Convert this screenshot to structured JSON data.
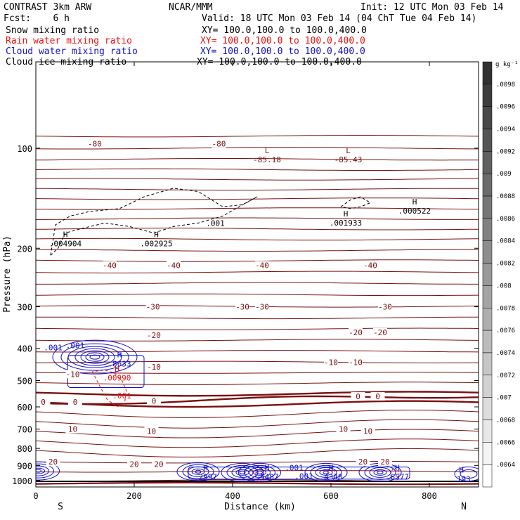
{
  "header": {
    "title": "CONTRAST  3km ARW",
    "center": "NCAR/MMM",
    "init": "Init: 12 UTC Mon 03 Feb 14",
    "fcst": "Fcst:    6 h",
    "valid": "Valid: 18 UTC Mon 03 Feb 14 (04 ChT Tue 04 Feb 14)",
    "fields": [
      {
        "name": "Snow mixing ratio",
        "xy": "XY= 100.0,100.0 to 100.0,400.0",
        "color": "#000000"
      },
      {
        "name": "Rain water mixing ratio",
        "xy": "XY= 100.0,100.0 to 100.0,400.0",
        "color": "#ee1111"
      },
      {
        "name": "Cloud water mixing ratio",
        "xy": "XY= 100.0,100.0 to 100.0,400.0",
        "color": "#1111cc"
      },
      {
        "name": "Cloud ice mixing ratio",
        "xy": "XY= 100.0,100.0 to 100.0,400.0",
        "color": "#000000"
      }
    ]
  },
  "colors": {
    "temperature": "#7a1010",
    "rain": "#ee1111",
    "cloud": "#1111cc",
    "snow": "#000000",
    "zero": "#7a1010"
  },
  "chart_data": {
    "type": "contour",
    "xlabel": "Distance (km)",
    "ylabel": "Pressure (hPa)",
    "xlim": [
      0,
      900
    ],
    "ylim": [
      1045,
      55
    ],
    "yscale": "log",
    "xticks": [
      0,
      200,
      400,
      600,
      800
    ],
    "yticks": [
      100,
      200,
      300,
      400,
      500,
      600,
      700,
      800,
      900,
      1000
    ],
    "end_labels": {
      "left": "S",
      "right": "N"
    },
    "colorbar": {
      "unit": "g kg⁻¹",
      "labels": [
        ".0098",
        ".0096",
        ".0094",
        ".0092",
        ".009",
        ".0088",
        ".0086",
        ".0084",
        ".0082",
        ".008",
        ".0078",
        ".0076",
        ".0074",
        ".0072",
        ".007",
        ".0068",
        ".0066",
        ".0064"
      ]
    },
    "temperature_contour_labels": [
      {
        "text": "-80",
        "x": 120,
        "p": 97
      },
      {
        "text": "-80",
        "x": 372,
        "p": 97
      },
      {
        "text": "-40",
        "x": 150,
        "p": 225
      },
      {
        "text": "-40",
        "x": 280,
        "p": 225
      },
      {
        "text": "-40",
        "x": 460,
        "p": 225
      },
      {
        "text": "-40",
        "x": 680,
        "p": 225
      },
      {
        "text": "-30",
        "x": 238,
        "p": 300
      },
      {
        "text": "-30",
        "x": 420,
        "p": 300
      },
      {
        "text": "-30",
        "x": 460,
        "p": 300
      },
      {
        "text": "-30",
        "x": 710,
        "p": 300
      },
      {
        "text": "-20",
        "x": 240,
        "p": 365
      },
      {
        "text": "-20",
        "x": 650,
        "p": 358
      },
      {
        "text": "-20",
        "x": 700,
        "p": 358
      },
      {
        "text": "-10",
        "x": 240,
        "p": 455
      },
      {
        "text": "-10",
        "x": 600,
        "p": 440
      },
      {
        "text": "-10",
        "x": 650,
        "p": 440
      },
      {
        "text": "-10",
        "x": 75,
        "p": 478
      },
      {
        "text": "0",
        "x": 15,
        "p": 580
      },
      {
        "text": "0",
        "x": 80,
        "p": 580
      },
      {
        "text": "0",
        "x": 240,
        "p": 575
      },
      {
        "text": "0",
        "x": 655,
        "p": 558
      },
      {
        "text": "0",
        "x": 695,
        "p": 558
      },
      {
        "text": "10",
        "x": 75,
        "p": 700
      },
      {
        "text": "10",
        "x": 235,
        "p": 710
      },
      {
        "text": "10",
        "x": 625,
        "p": 700
      },
      {
        "text": "10",
        "x": 675,
        "p": 710
      },
      {
        "text": "20",
        "x": 35,
        "p": 878
      },
      {
        "text": "20",
        "x": 200,
        "p": 893
      },
      {
        "text": "20",
        "x": 250,
        "p": 893
      },
      {
        "text": "20",
        "x": 665,
        "p": 878
      },
      {
        "text": "20",
        "x": 710,
        "p": 878
      }
    ],
    "extrema": [
      {
        "kind": "L",
        "value": "-85.18",
        "x": 470,
        "p": 105,
        "color": "#7a1010"
      },
      {
        "kind": "L",
        "value": "-85.43",
        "x": 635,
        "p": 105,
        "color": "#7a1010"
      },
      {
        "kind": "H",
        "value": ".004904",
        "x": 60,
        "p": 188,
        "color": "#000000"
      },
      {
        "kind": "H",
        "value": ".002925",
        "x": 245,
        "p": 188,
        "color": "#000000"
      },
      {
        "kind": "H",
        "value": ".001933",
        "x": 630,
        "p": 163,
        "color": "#000000"
      },
      {
        "kind": "H",
        "value": ".000522",
        "x": 770,
        "p": 150,
        "color": "#000000"
      },
      {
        "kind": "H",
        "value": ".8633",
        "x": 170,
        "p": 432,
        "color": "#1111cc"
      },
      {
        "kind": "H",
        "value": ".00990",
        "x": 165,
        "p": 476,
        "color": "#ee1111"
      },
      {
        "kind": "H",
        "value": ".2997",
        "x": 345,
        "p": 945,
        "color": "#1111cc"
      },
      {
        "kind": "H",
        "value": ".5487",
        "x": 470,
        "p": 945,
        "color": "#1111cc"
      },
      {
        "kind": "H",
        "value": ".4348",
        "x": 600,
        "p": 945,
        "color": "#1111cc"
      },
      {
        "kind": "H",
        "value": ".6577",
        "x": 735,
        "p": 945,
        "color": "#1111cc"
      },
      {
        "kind": "H",
        "value": ".193",
        "x": 865,
        "p": 960,
        "color": "#1111cc"
      }
    ],
    "mixing_ratio_labels": [
      {
        "text": ".001",
        "x": 365,
        "p": 168,
        "color": "#000000"
      },
      {
        "text": ".001",
        "x": 80,
        "p": 392,
        "color": "#1111cc"
      },
      {
        "text": ".001",
        "x": 35,
        "p": 398,
        "color": "#1111cc"
      },
      {
        "text": ".001",
        "x": 175,
        "p": 555,
        "color": "#ee1111"
      },
      {
        "text": ".001",
        "x": 525,
        "p": 915,
        "color": "#1111cc"
      },
      {
        "text": ".001",
        "x": 545,
        "p": 970,
        "color": "#1111cc"
      }
    ]
  }
}
